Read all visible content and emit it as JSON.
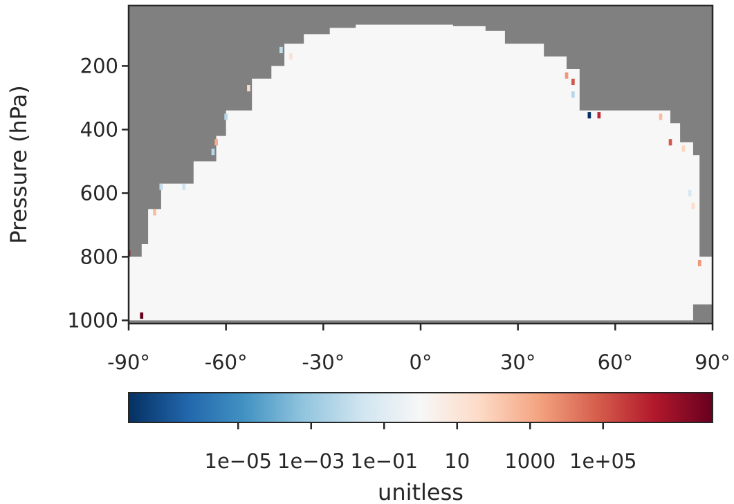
{
  "chart_data": {
    "type": "heatmap",
    "title": "",
    "xlabel": "",
    "ylabel": "Pressure (hPa)",
    "x_ticks": [
      "-90°",
      "-60°",
      "-30°",
      "0°",
      "30°",
      "60°",
      "90°"
    ],
    "x_tick_values": [
      -90,
      -60,
      -30,
      0,
      30,
      60,
      90
    ],
    "y_ticks": [
      "200",
      "400",
      "600",
      "800",
      "1000"
    ],
    "y_tick_values": [
      200,
      400,
      600,
      800,
      1000
    ],
    "xlim": [
      -90,
      90
    ],
    "ylim": [
      1010,
      10
    ],
    "missing_color": "#808080",
    "colormap": "RdBu_r",
    "colorbar": {
      "label": "unitless",
      "scale": "log",
      "range": [
        1e-08,
        100000000.0
      ],
      "tick_labels": [
        "1e−05",
        "1e−03",
        "1e−01",
        "10",
        "1000",
        "1e+05"
      ],
      "tick_values": [
        1e-05,
        0.001,
        0.1,
        10,
        1000,
        100000.0
      ]
    },
    "data_extent": {
      "boundary": [
        {
          "lat": -90,
          "top_pressure": 800
        },
        {
          "lat": -86,
          "top_pressure": 760
        },
        {
          "lat": -84,
          "top_pressure": 650
        },
        {
          "lat": -80,
          "top_pressure": 570
        },
        {
          "lat": -70,
          "top_pressure": 500
        },
        {
          "lat": -63,
          "top_pressure": 420
        },
        {
          "lat": -60,
          "top_pressure": 340
        },
        {
          "lat": -52,
          "top_pressure": 240
        },
        {
          "lat": -46,
          "top_pressure": 200
        },
        {
          "lat": -42,
          "top_pressure": 130
        },
        {
          "lat": -36,
          "top_pressure": 100
        },
        {
          "lat": -28,
          "top_pressure": 80
        },
        {
          "lat": -20,
          "top_pressure": 70
        },
        {
          "lat": 0,
          "top_pressure": 70
        },
        {
          "lat": 10,
          "top_pressure": 75
        },
        {
          "lat": 20,
          "top_pressure": 90
        },
        {
          "lat": 26,
          "top_pressure": 130
        },
        {
          "lat": 38,
          "top_pressure": 170
        },
        {
          "lat": 45,
          "top_pressure": 210
        },
        {
          "lat": 49,
          "top_pressure": 340
        },
        {
          "lat": 75,
          "top_pressure": 340
        },
        {
          "lat": 77,
          "top_pressure": 380
        },
        {
          "lat": 80,
          "top_pressure": 440
        },
        {
          "lat": 84,
          "top_pressure": 480
        },
        {
          "lat": 86,
          "top_pressure": 800
        },
        {
          "lat": 90,
          "top_pressure": 820
        }
      ],
      "bottom_pressure": 1000,
      "bottom_lat_range": [
        -90,
        84
      ]
    },
    "background_value": 1,
    "notable_cells": [
      {
        "lat": -90,
        "pressure": 790,
        "value": 3000000.0
      },
      {
        "lat": -86,
        "pressure": 985,
        "value": 100000000.0
      },
      {
        "lat": -82,
        "pressure": 660,
        "value": 300
      },
      {
        "lat": -80,
        "pressure": 580,
        "value": 0.01
      },
      {
        "lat": -73,
        "pressure": 580,
        "value": 0.02
      },
      {
        "lat": -63,
        "pressure": 440,
        "value": 1000
      },
      {
        "lat": -64,
        "pressure": 470,
        "value": 0.005
      },
      {
        "lat": -60,
        "pressure": 360,
        "value": 0.005
      },
      {
        "lat": -53,
        "pressure": 270,
        "value": 30
      },
      {
        "lat": -43,
        "pressure": 150,
        "value": 0.01
      },
      {
        "lat": -40,
        "pressure": 170,
        "value": 20
      },
      {
        "lat": 45,
        "pressure": 230,
        "value": 3000
      },
      {
        "lat": 47,
        "pressure": 250,
        "value": 100000
      },
      {
        "lat": 47,
        "pressure": 290,
        "value": 0.005
      },
      {
        "lat": 52,
        "pressure": 355,
        "value": 1e-08
      },
      {
        "lat": 55,
        "pressure": 355,
        "value": 1000000.0
      },
      {
        "lat": 74,
        "pressure": 360,
        "value": 300
      },
      {
        "lat": 77,
        "pressure": 440,
        "value": 100000
      },
      {
        "lat": 81,
        "pressure": 460,
        "value": 50
      },
      {
        "lat": 83,
        "pressure": 600,
        "value": 0.05
      },
      {
        "lat": 84,
        "pressure": 640,
        "value": 30
      },
      {
        "lat": 86,
        "pressure": 820,
        "value": 3000
      }
    ],
    "grid": false
  }
}
